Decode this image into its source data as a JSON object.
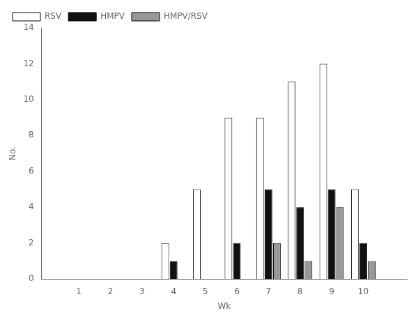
{
  "chart_data": {
    "type": "bar",
    "x": [
      1,
      2,
      3,
      4,
      5,
      6,
      7,
      8,
      9,
      10
    ],
    "series": [
      {
        "name": "RSV",
        "color": "#ffffff",
        "values": [
          0,
          0,
          0,
          2,
          5,
          9,
          9,
          11,
          12,
          5
        ]
      },
      {
        "name": "HMPV",
        "color": "#111111",
        "values": [
          0,
          0,
          0,
          1,
          0,
          2,
          5,
          4,
          5,
          2
        ]
      },
      {
        "name": "HMPV/RSV",
        "color": "#999999",
        "values": [
          0,
          0,
          0,
          0,
          0,
          0,
          2,
          1,
          4,
          1
        ]
      }
    ],
    "xlabel": "Wk",
    "ylabel": "No.",
    "xlim": [
      0.4,
      10.8
    ],
    "xticks": [
      1,
      2,
      3,
      4,
      5,
      6,
      7,
      8,
      9,
      10
    ],
    "ylim": [
      0,
      14
    ],
    "yticks": [
      0,
      2,
      4,
      6,
      8,
      10,
      12,
      14
    ],
    "grid": false,
    "legend": "upper left"
  }
}
